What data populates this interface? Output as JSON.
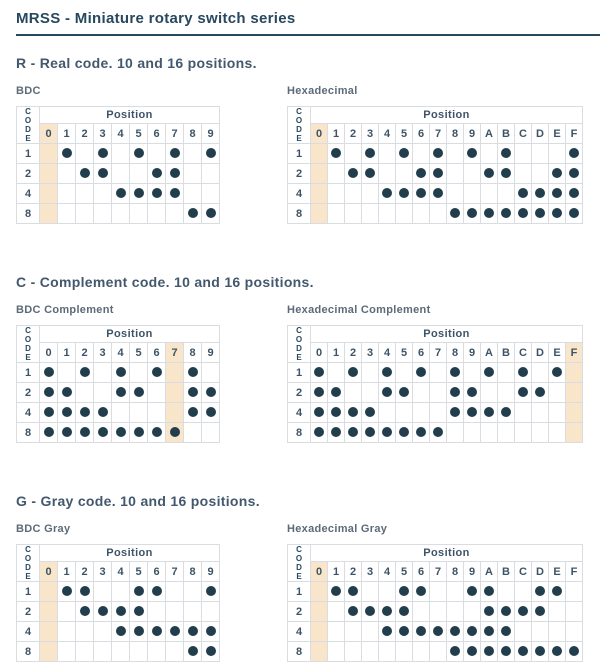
{
  "page": {
    "title": "MRSS - Miniature rotary switch series"
  },
  "colors": {
    "title": "#27485e",
    "heading": "#43586c",
    "table_label": "#5d6a78",
    "cell_text": "#3d5468",
    "dot": "#223e4d",
    "highlight": "#f8e5ca",
    "grid": "#d9dde1"
  },
  "sections": [
    {
      "id": "real",
      "heading": "R - Real code. 10 and 16 positions.",
      "tables": [
        {
          "label": "BDC",
          "code_label": "CODE",
          "position_label": "Position",
          "columns": [
            "0",
            "1",
            "2",
            "3",
            "4",
            "5",
            "6",
            "7",
            "8",
            "9"
          ],
          "highlight_column": "0",
          "rows": [
            {
              "label": "1",
              "dots": [
                "1",
                "3",
                "5",
                "7",
                "9"
              ]
            },
            {
              "label": "2",
              "dots": [
                "2",
                "3",
                "6",
                "7"
              ]
            },
            {
              "label": "4",
              "dots": [
                "4",
                "5",
                "6",
                "7"
              ]
            },
            {
              "label": "8",
              "dots": [
                "8",
                "9"
              ]
            }
          ]
        },
        {
          "label": "Hexadecimal",
          "code_label": "CODE",
          "position_label": "Position",
          "columns": [
            "0",
            "1",
            "2",
            "3",
            "4",
            "5",
            "6",
            "7",
            "8",
            "9",
            "A",
            "B",
            "C",
            "D",
            "E",
            "F"
          ],
          "highlight_column": "0",
          "rows": [
            {
              "label": "1",
              "dots": [
                "1",
                "3",
                "5",
                "7",
                "9",
                "B",
                "F"
              ]
            },
            {
              "label": "2",
              "dots": [
                "2",
                "3",
                "6",
                "7",
                "A",
                "B",
                "E",
                "F"
              ]
            },
            {
              "label": "4",
              "dots": [
                "4",
                "5",
                "6",
                "7",
                "C",
                "D",
                "E",
                "F"
              ]
            },
            {
              "label": "8",
              "dots": [
                "8",
                "9",
                "A",
                "B",
                "C",
                "D",
                "E",
                "F"
              ]
            }
          ]
        }
      ]
    },
    {
      "id": "complement",
      "heading": "C - Complement code. 10 and 16 positions.",
      "tables": [
        {
          "label": "BDC Complement",
          "code_label": "CODE",
          "position_label": "Position",
          "columns": [
            "0",
            "1",
            "2",
            "3",
            "4",
            "5",
            "6",
            "7",
            "8",
            "9"
          ],
          "highlight_column": "7",
          "rows": [
            {
              "label": "1",
              "dots": [
                "0",
                "2",
                "4",
                "6",
                "8"
              ]
            },
            {
              "label": "2",
              "dots": [
                "0",
                "1",
                "4",
                "5",
                "8",
                "9"
              ]
            },
            {
              "label": "4",
              "dots": [
                "0",
                "1",
                "2",
                "3",
                "8",
                "9"
              ]
            },
            {
              "label": "8",
              "dots": [
                "0",
                "1",
                "2",
                "3",
                "4",
                "5",
                "6",
                "7"
              ]
            }
          ]
        },
        {
          "label": "Hexadecimal Complement",
          "code_label": "CODE",
          "position_label": "Position",
          "columns": [
            "0",
            "1",
            "2",
            "3",
            "4",
            "5",
            "6",
            "7",
            "8",
            "9",
            "A",
            "B",
            "C",
            "D",
            "E",
            "F"
          ],
          "highlight_column": "F",
          "rows": [
            {
              "label": "1",
              "dots": [
                "0",
                "2",
                "4",
                "6",
                "8",
                "A",
                "C",
                "E"
              ]
            },
            {
              "label": "2",
              "dots": [
                "0",
                "1",
                "4",
                "5",
                "8",
                "9",
                "C",
                "D"
              ]
            },
            {
              "label": "4",
              "dots": [
                "0",
                "1",
                "2",
                "3",
                "8",
                "9",
                "A",
                "B"
              ]
            },
            {
              "label": "8",
              "dots": [
                "0",
                "1",
                "2",
                "3",
                "4",
                "5",
                "6",
                "7"
              ]
            }
          ]
        }
      ]
    },
    {
      "id": "gray",
      "heading": "G - Gray code. 10 and 16 positions.",
      "tables": [
        {
          "label": "BDC Gray",
          "code_label": "CODE",
          "position_label": "Position",
          "columns": [
            "0",
            "1",
            "2",
            "3",
            "4",
            "5",
            "6",
            "7",
            "8",
            "9"
          ],
          "highlight_column": "0",
          "rows": [
            {
              "label": "1",
              "dots": [
                "1",
                "2",
                "5",
                "6",
                "9"
              ]
            },
            {
              "label": "2",
              "dots": [
                "2",
                "3",
                "4",
                "5"
              ]
            },
            {
              "label": "4",
              "dots": [
                "4",
                "5",
                "6",
                "7",
                "8",
                "9"
              ]
            },
            {
              "label": "8",
              "dots": [
                "8",
                "9"
              ]
            }
          ]
        },
        {
          "label": "Hexadecimal Gray",
          "code_label": "CODE",
          "position_label": "Position",
          "columns": [
            "0",
            "1",
            "2",
            "3",
            "4",
            "5",
            "6",
            "7",
            "8",
            "9",
            "A",
            "B",
            "C",
            "D",
            "E",
            "F"
          ],
          "highlight_column": "0",
          "rows": [
            {
              "label": "1",
              "dots": [
                "1",
                "2",
                "5",
                "6",
                "9",
                "A",
                "D",
                "E"
              ]
            },
            {
              "label": "2",
              "dots": [
                "2",
                "3",
                "4",
                "5",
                "A",
                "B",
                "C",
                "D"
              ]
            },
            {
              "label": "4",
              "dots": [
                "4",
                "5",
                "6",
                "7",
                "8",
                "9",
                "A",
                "B"
              ]
            },
            {
              "label": "8",
              "dots": [
                "8",
                "9",
                "A",
                "B",
                "C",
                "D",
                "E",
                "F"
              ]
            }
          ]
        }
      ]
    }
  ]
}
